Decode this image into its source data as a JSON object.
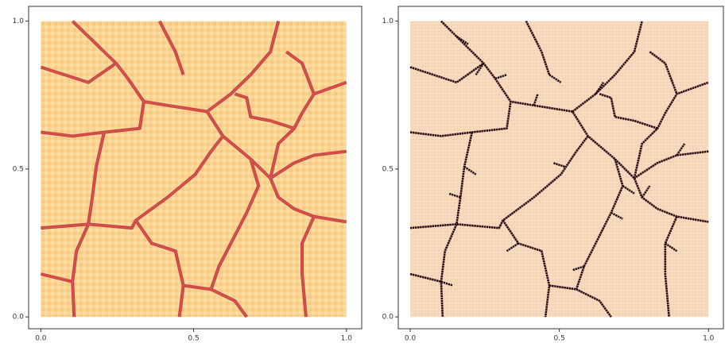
{
  "chart_data": [
    {
      "type": "image",
      "xlim": [
        -0.04,
        1.05
      ],
      "ylim": [
        -0.04,
        1.05
      ],
      "xticks": [
        {
          "value": 0,
          "label": "0.0"
        },
        0.5,
        {
          "value": 1,
          "label": "1.0"
        }
      ],
      "yticks": [
        {
          "value": 0,
          "label": "0.0"
        },
        0.5,
        {
          "value": 1,
          "label": "1.0"
        }
      ]
    },
    {
      "type": "image",
      "xlim": [
        -0.04,
        1.05
      ],
      "ylim": [
        -0.04,
        1.05
      ],
      "xticks": [
        {
          "value": 0,
          "label": "0.0"
        },
        0.5,
        {
          "value": 1,
          "label": "1.0"
        }
      ],
      "yticks": [
        {
          "value": 0,
          "label": "0.0"
        },
        0.5,
        {
          "value": 1,
          "label": "1.0"
        }
      ]
    }
  ]
}
